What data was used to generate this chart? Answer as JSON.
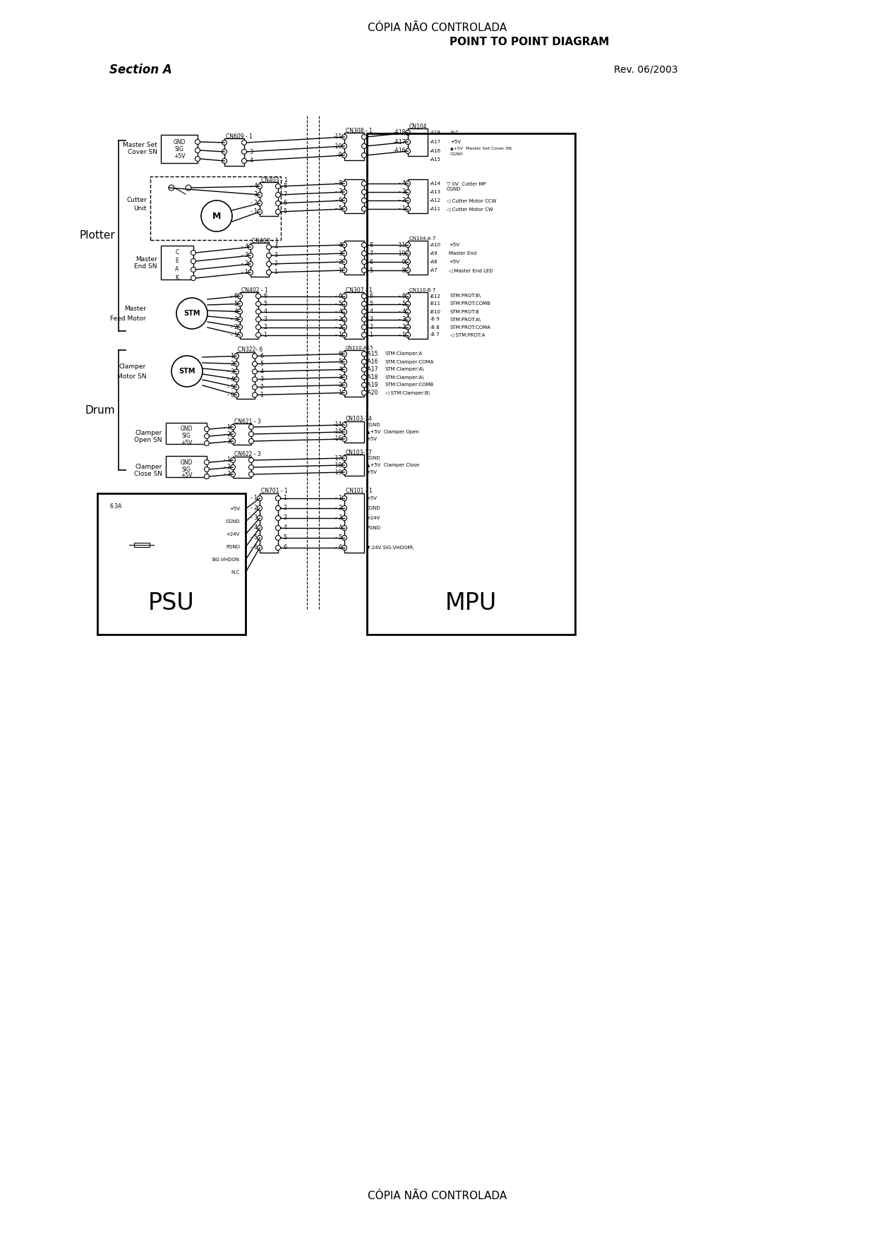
{
  "title_top": "CÓPIA NÃO CONTROLADA",
  "subtitle_top": "POINT TO POINT DIAGRAM",
  "section": "Section A",
  "rev": "Rev. 06/2003",
  "title_bottom": "CÓPIA NÃO CONTROLADA",
  "bg_color": "#ffffff",
  "line_color": "#000000"
}
